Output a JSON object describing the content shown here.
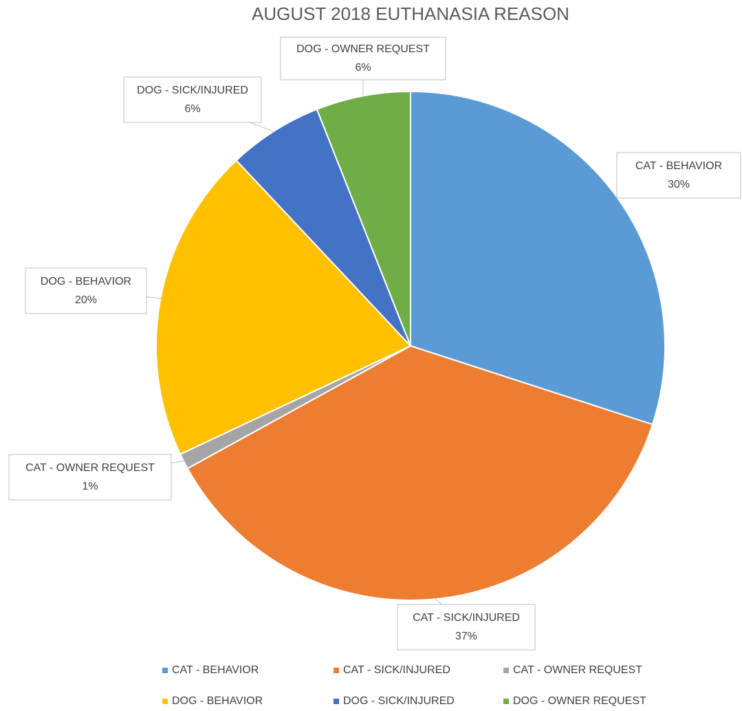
{
  "chart_data": {
    "type": "pie",
    "title": "AUGUST 2018 EUTHANASIA REASON",
    "categories": [
      "CAT - BEHAVIOR",
      "CAT - SICK/INJURED",
      "CAT - OWNER REQUEST",
      "DOG - BEHAVIOR",
      "DOG - SICK/INJURED",
      "DOG - OWNER REQUEST"
    ],
    "values": [
      30,
      37,
      1,
      20,
      6,
      6
    ],
    "value_labels": [
      "30%",
      "37%",
      "1%",
      "20%",
      "6%",
      "6%"
    ],
    "colors": [
      "#5b9bd5",
      "#ed7d31",
      "#a5a5a5",
      "#ffc000",
      "#4472c4",
      "#70ad47"
    ],
    "legend": "bottom"
  }
}
